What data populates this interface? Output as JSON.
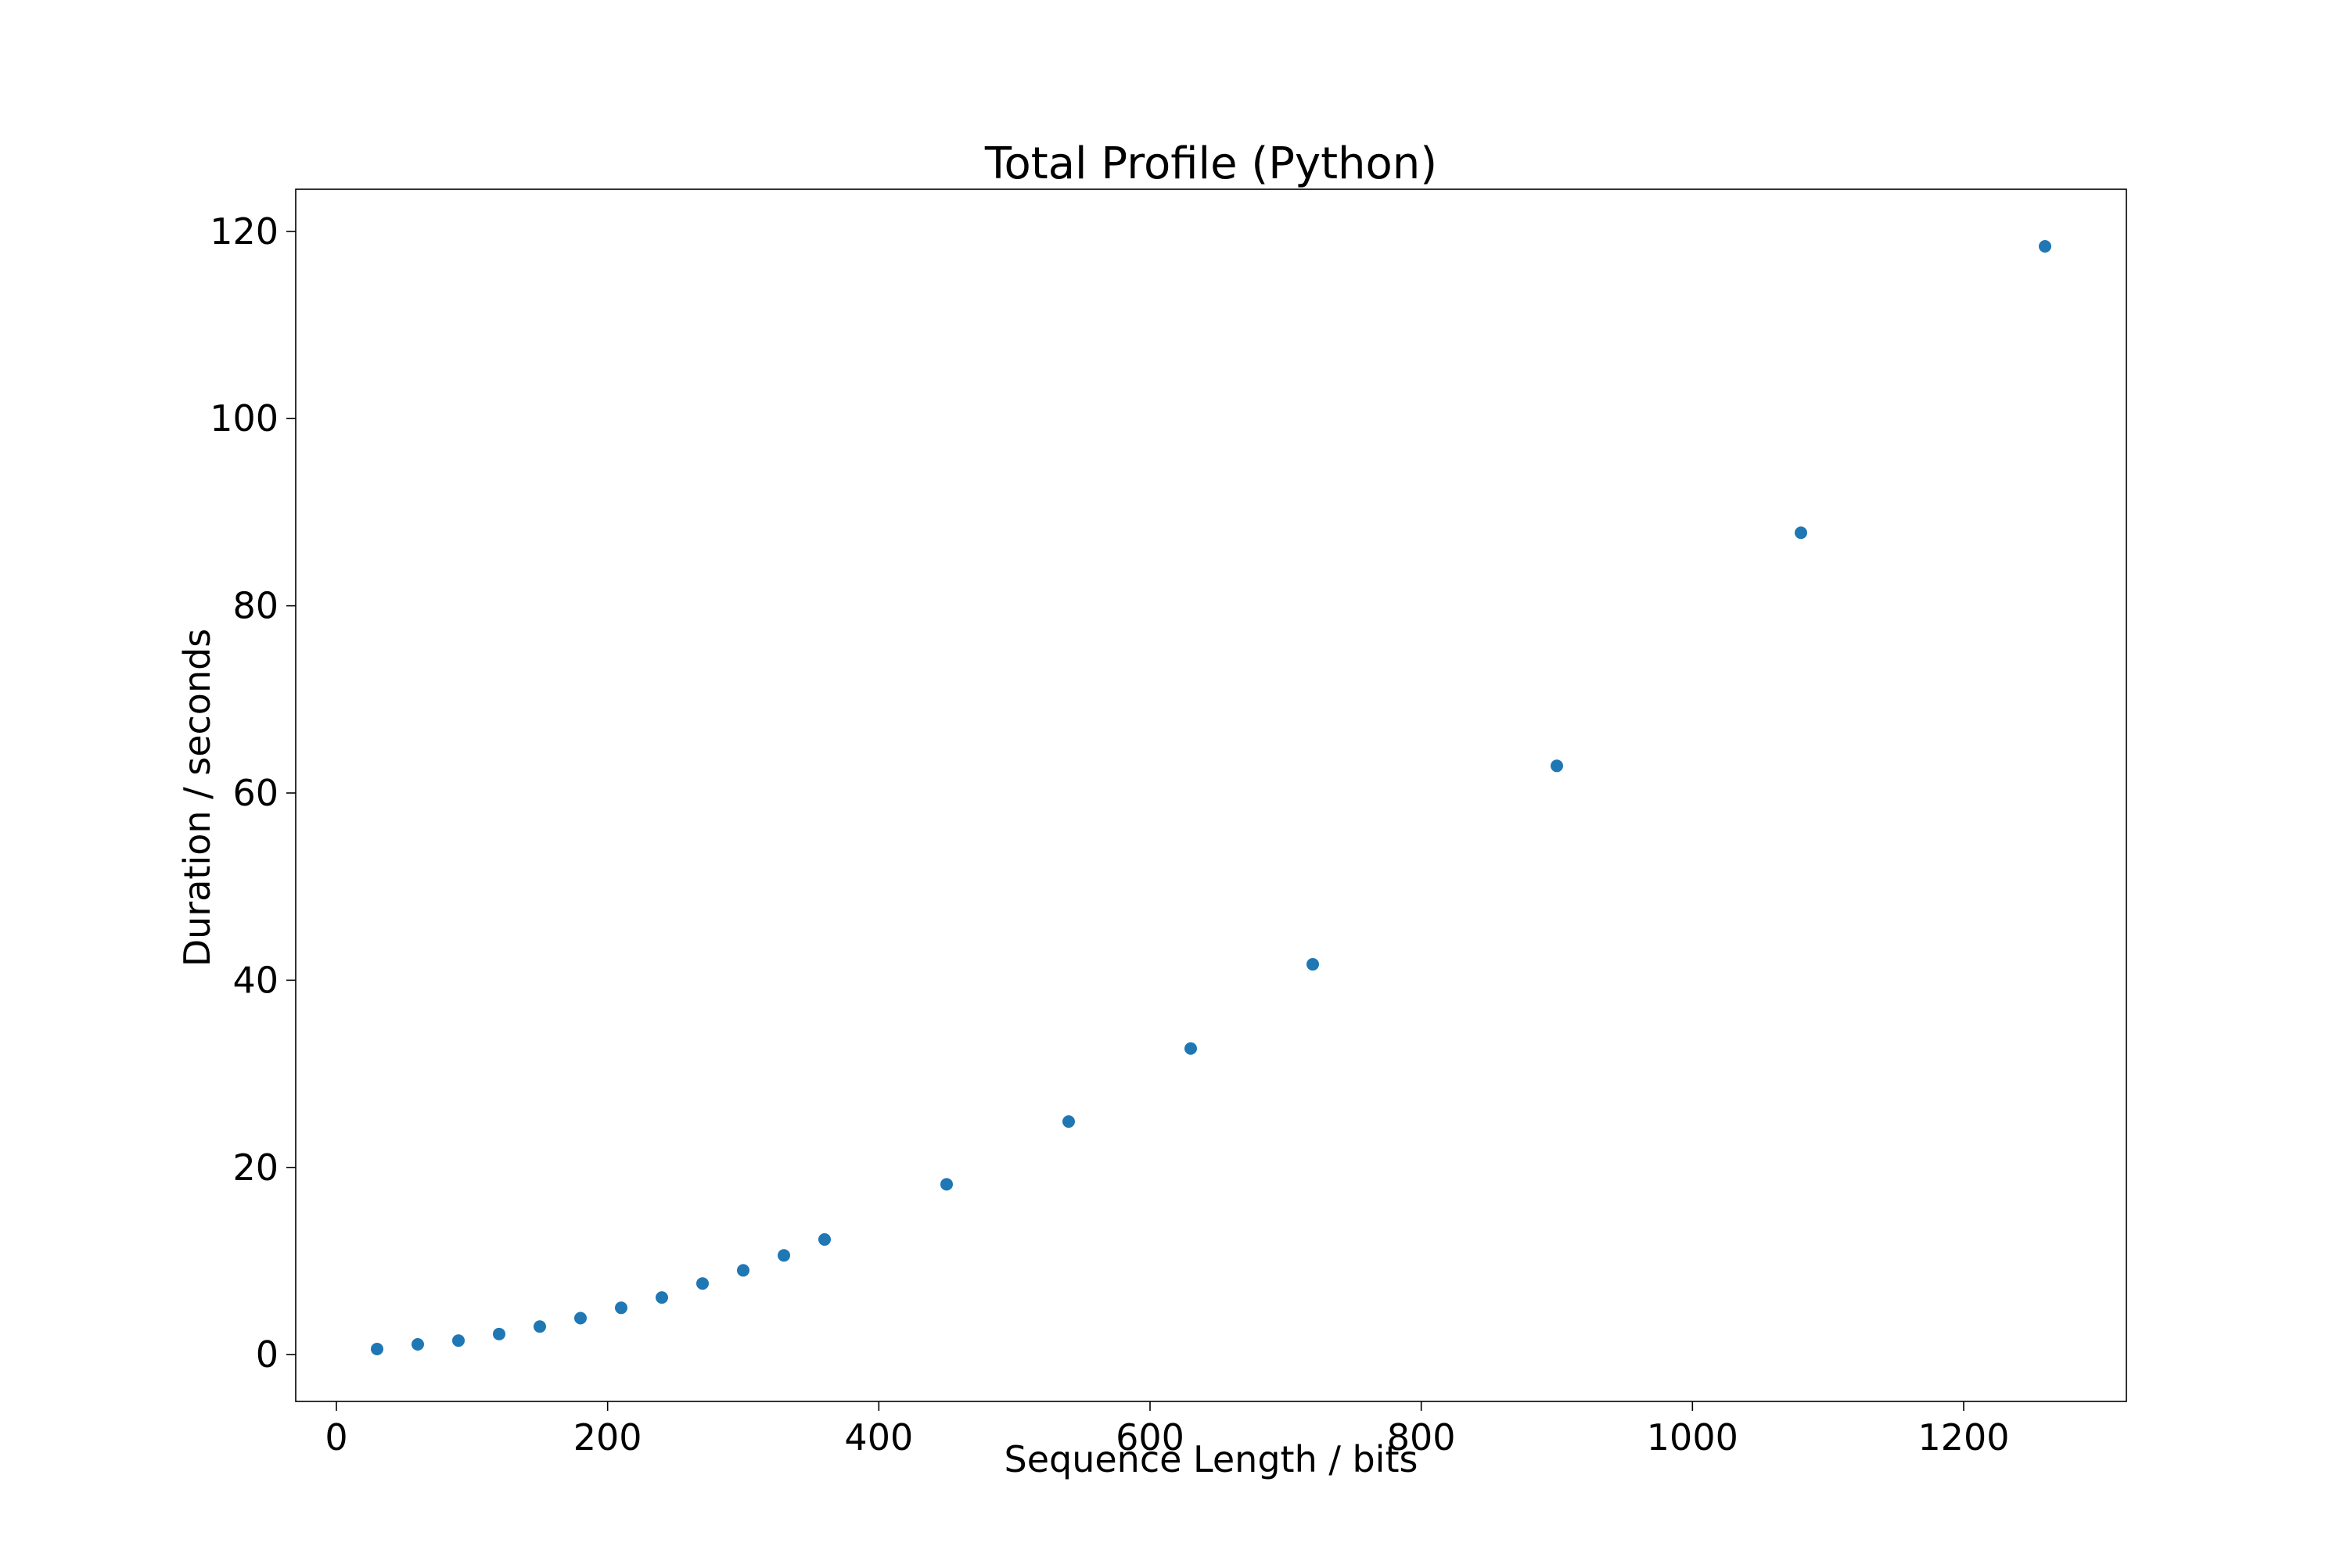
{
  "chart_data": {
    "type": "scatter",
    "title": "Total Profile (Python)",
    "xlabel": "Sequence Length / bits",
    "ylabel": "Duration / seconds",
    "xlim": [
      -30,
      1320
    ],
    "ylim": [
      -5,
      124.5
    ],
    "xticks": [
      0,
      200,
      400,
      600,
      800,
      1000,
      1200
    ],
    "yticks": [
      0,
      20,
      40,
      60,
      80,
      100,
      120
    ],
    "grid": false,
    "legend": "none",
    "series": [
      {
        "color": "#1f77b4",
        "x": [
          30,
          60,
          90,
          120,
          150,
          180,
          210,
          240,
          270,
          300,
          330,
          360,
          450,
          540,
          630,
          720,
          900,
          1080,
          1260
        ],
        "y": [
          0.6,
          1.1,
          1.5,
          2.2,
          3.0,
          3.9,
          5.0,
          6.1,
          7.6,
          9.0,
          10.6,
          12.3,
          18.2,
          24.9,
          32.7,
          41.7,
          62.9,
          87.8,
          118.4
        ]
      }
    ]
  }
}
